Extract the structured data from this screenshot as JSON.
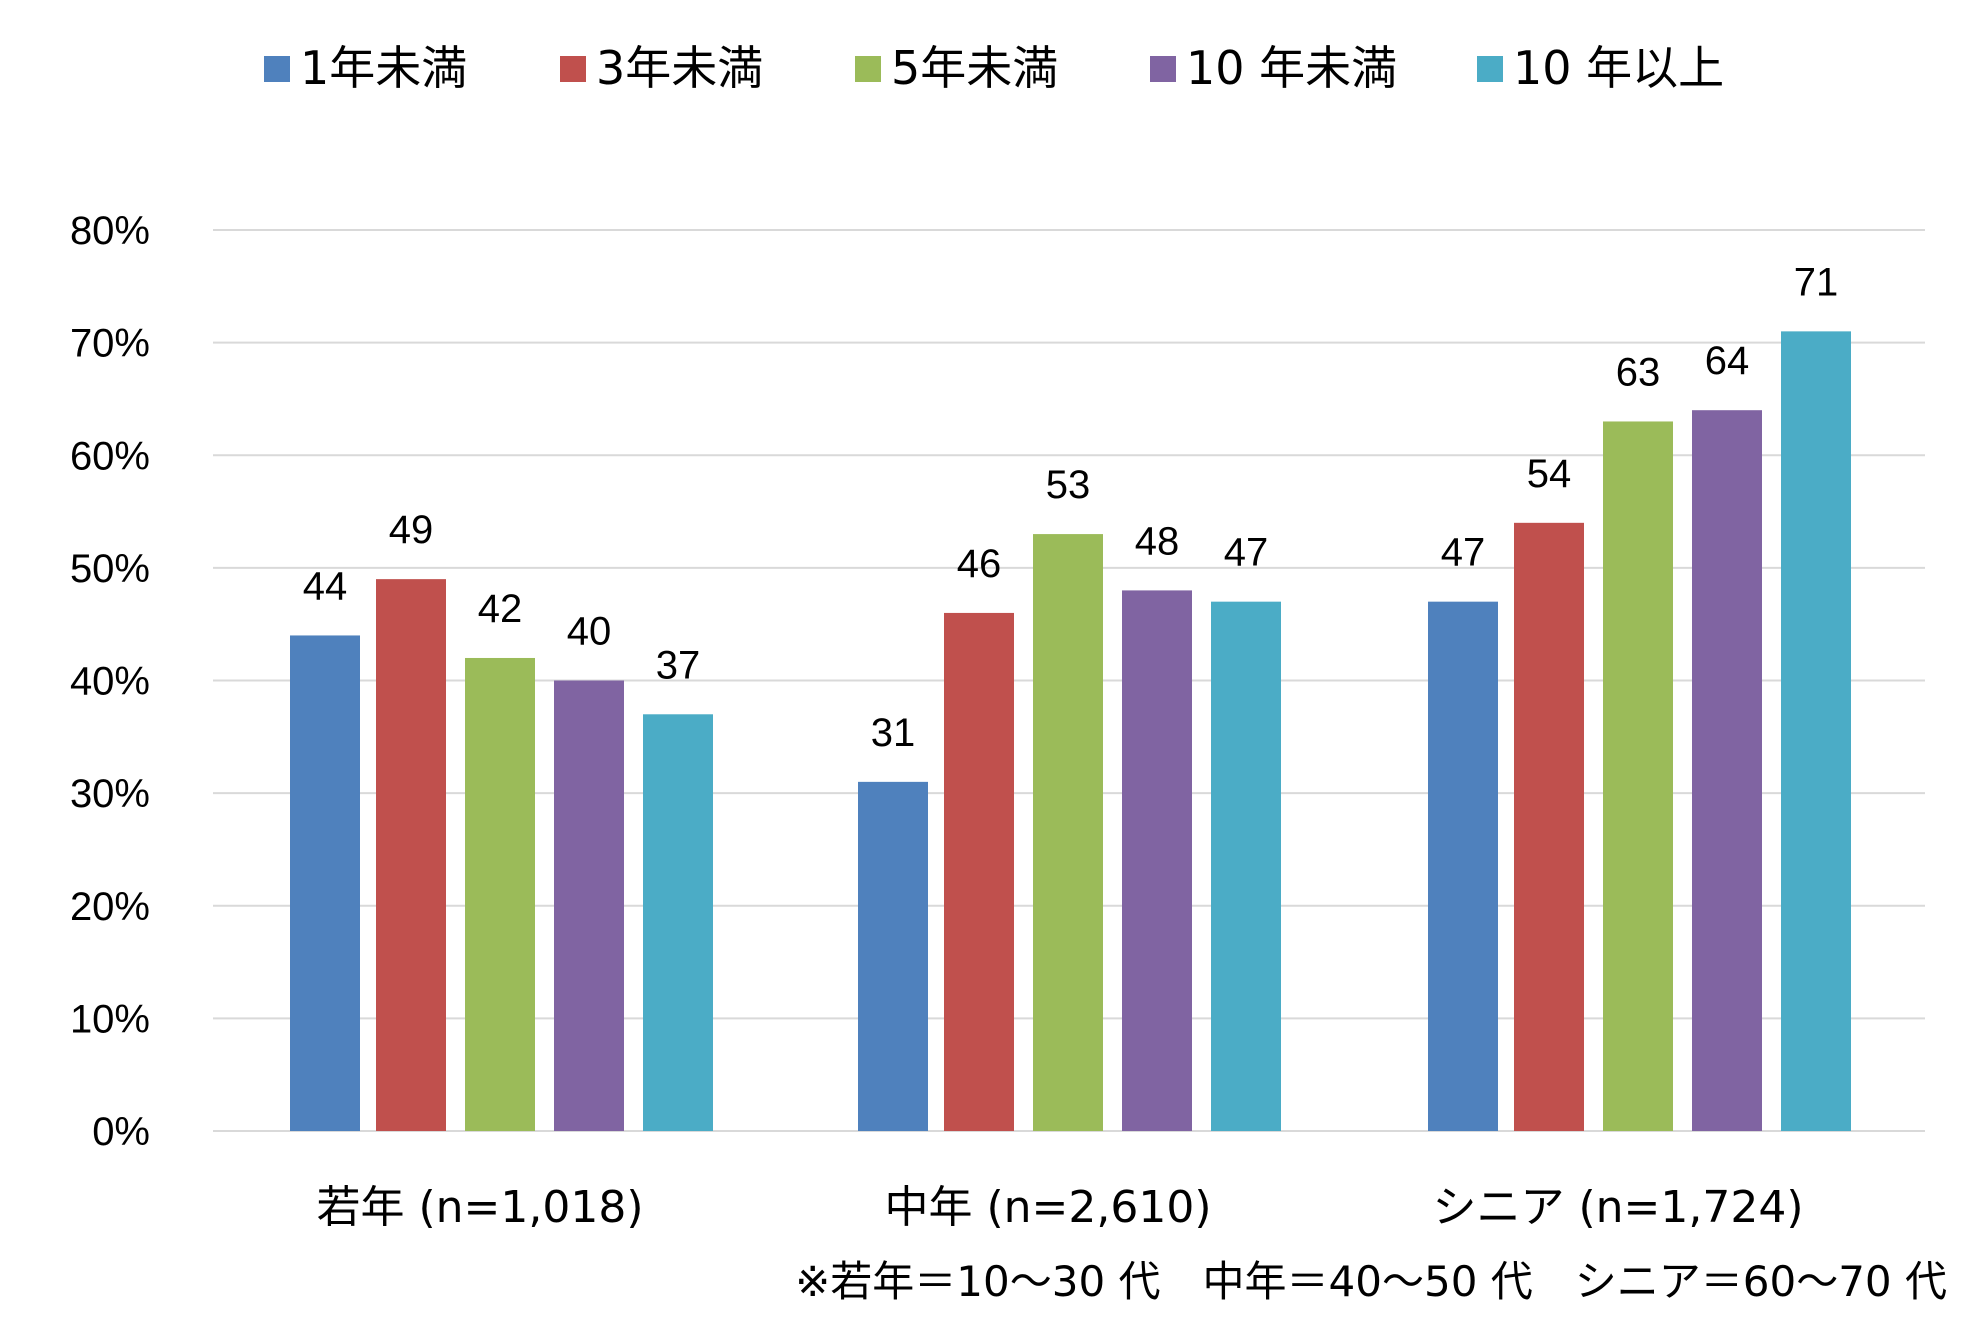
{
  "chart_data": {
    "type": "bar",
    "categories": [
      "若年 (n=1,018)",
      "中年 (n=2,610)",
      "シニア (n=1,724)"
    ],
    "series": [
      {
        "name": "1年未満",
        "color": "#4F81BD",
        "values": [
          44,
          31,
          47
        ]
      },
      {
        "name": "3年未満",
        "color": "#C0504D",
        "values": [
          49,
          46,
          54
        ]
      },
      {
        "name": "5年未満",
        "color": "#9BBB59",
        "values": [
          42,
          53,
          63
        ]
      },
      {
        "name": "10 年未満",
        "color": "#8064A2",
        "values": [
          40,
          48,
          64
        ]
      },
      {
        "name": "10 年以上",
        "color": "#4BACC6",
        "values": [
          37,
          47,
          71
        ]
      }
    ],
    "data_labels": [
      [
        "44",
        "31",
        "47"
      ],
      [
        "49",
        "46",
        "54"
      ],
      [
        "42",
        "53",
        "63"
      ],
      [
        "40",
        "48",
        "64"
      ],
      [
        "37",
        "47",
        "71"
      ]
    ],
    "y_ticks": [
      "0%",
      "10%",
      "20%",
      "30%",
      "40%",
      "50%",
      "60%",
      "70%",
      "80%"
    ],
    "ylim": [
      0,
      80
    ],
    "grid": true,
    "legend_position": "top",
    "note": "※若年＝10～30 代　中年＝40～50 代　シニア＝60～70 代"
  }
}
